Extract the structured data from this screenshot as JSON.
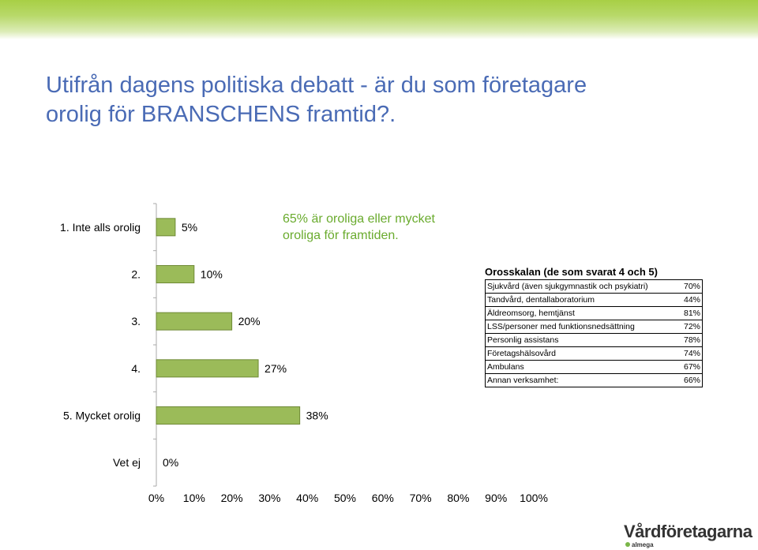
{
  "title": "Utifrån dagens politiska debatt - är du som företagare\norolig för BRANSCHENS framtid?.",
  "annotation": "65% är oroliga eller mycket\noroliga för framtiden.",
  "colors": {
    "bar_fill": "#9bbb59",
    "bar_stroke": "#6f8a36",
    "title": "#4a6bb5",
    "annotation": "#6aab2e"
  },
  "chart_data": {
    "type": "bar",
    "orientation": "horizontal",
    "categories": [
      "1. Inte alls orolig",
      "2.",
      "3.",
      "4.",
      "5. Mycket orolig",
      "Vet ej"
    ],
    "values": [
      5,
      10,
      20,
      27,
      38,
      0
    ],
    "data_labels": [
      "5%",
      "10%",
      "20%",
      "27%",
      "38%",
      "0%"
    ],
    "xlim": [
      0,
      100
    ],
    "x_tick_labels": [
      "0%",
      "10%",
      "20%",
      "30%",
      "40%",
      "50%",
      "60%",
      "70%",
      "80%",
      "90%",
      "100%"
    ],
    "grid": false
  },
  "scale_table": {
    "title": "Orosskalan (de som svarat 4 och 5)",
    "rows": [
      {
        "label": "Sjukvård (även sjukgymnastik och psykiatri)",
        "value": "70%"
      },
      {
        "label": "Tandvård, dentallaboratorium",
        "value": "44%"
      },
      {
        "label": "Äldreomsorg, hemtjänst",
        "value": "81%"
      },
      {
        "label": "LSS/personer med funktionsnedsättning",
        "value": "72%"
      },
      {
        "label": "Personlig assistans",
        "value": "78%"
      },
      {
        "label": "Företagshälsovård",
        "value": "74%"
      },
      {
        "label": "Ambulans",
        "value": "67%"
      },
      {
        "label": "Annan verksamhet:",
        "value": "66%"
      }
    ]
  },
  "logo": {
    "name": "Vårdföretagarna",
    "sub": "almega"
  }
}
